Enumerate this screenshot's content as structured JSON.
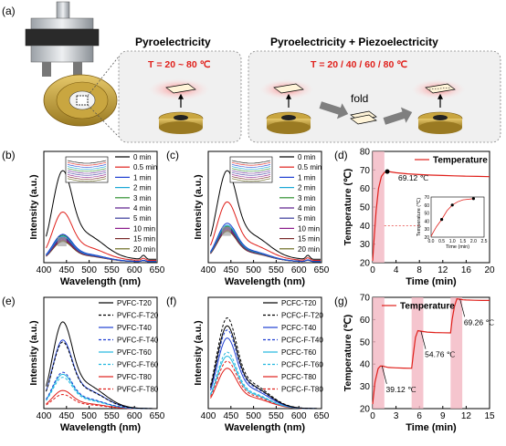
{
  "panels": {
    "a": {
      "letter": "(a)",
      "box1": {
        "title": "Pyroelectricity",
        "temp": "T = 20 ~ 80 ℃"
      },
      "box2": {
        "title": "Pyroelectricity + Piezoelectricity",
        "temp": "T = 20 / 40 / 60 / 80 ℃",
        "fold_label": "fold"
      }
    },
    "b": {
      "letter": "(b)"
    },
    "c": {
      "letter": "(c)"
    },
    "d": {
      "letter": "(d)"
    },
    "e": {
      "letter": "(e)"
    },
    "f": {
      "letter": "(f)"
    },
    "g": {
      "letter": "(g)"
    }
  },
  "chart_data": [
    {
      "id": "b",
      "type": "line",
      "xlabel": "Wavelength (nm)",
      "ylabel": "Intensity (a.u.)",
      "xlim": [
        400,
        650
      ],
      "xticks": [
        400,
        450,
        500,
        550,
        600,
        650
      ],
      "ylim": [
        0,
        1
      ],
      "y_ticks_shown": false,
      "series": [
        {
          "name": "0 min",
          "color": "#000000",
          "dash": false,
          "peak": 0.88,
          "base": 0.03
        },
        {
          "name": "0.5 min",
          "color": "#e0201b",
          "dash": false,
          "peak": 0.48,
          "base": 0.02
        },
        {
          "name": "1 min",
          "color": "#1f3fd1",
          "dash": false,
          "peak": 0.27,
          "base": 0.01
        },
        {
          "name": "2 min",
          "color": "#1aa7d6",
          "dash": false,
          "peak": 0.25,
          "base": 0.01
        },
        {
          "name": "3 min",
          "color": "#2f8f2f",
          "dash": false,
          "peak": 0.26,
          "base": 0.01
        },
        {
          "name": "4 min",
          "color": "#5a1a8a",
          "dash": false,
          "peak": 0.24,
          "base": 0.01
        },
        {
          "name": "5 min",
          "color": "#3a3a9a",
          "dash": false,
          "peak": 0.23,
          "base": 0.01
        },
        {
          "name": "10 min",
          "color": "#8a1a8a",
          "dash": false,
          "peak": 0.22,
          "base": 0.01
        },
        {
          "name": "15 min",
          "color": "#7a2a2a",
          "dash": false,
          "peak": 0.21,
          "base": 0.01
        },
        {
          "name": "20 min",
          "color": "#6a6a20",
          "dash": false,
          "peak": 0.2,
          "base": 0.01
        }
      ],
      "extra_peak_nm": 620
    },
    {
      "id": "c",
      "type": "line",
      "xlabel": "Wavelength (nm)",
      "ylabel": "Intensity (a.u.)",
      "xlim": [
        400,
        650
      ],
      "xticks": [
        400,
        450,
        500,
        550,
        600,
        650
      ],
      "ylim": [
        0,
        1
      ],
      "y_ticks_shown": false,
      "series": [
        {
          "name": "0 min",
          "color": "#000000",
          "dash": false,
          "peak": 0.88,
          "base": 0.03
        },
        {
          "name": "0.5 min",
          "color": "#e0201b",
          "dash": false,
          "peak": 0.58,
          "base": 0.02
        },
        {
          "name": "1 min",
          "color": "#1f3fd1",
          "dash": false,
          "peak": 0.38,
          "base": 0.01
        },
        {
          "name": "2 min",
          "color": "#1aa7d6",
          "dash": false,
          "peak": 0.36,
          "base": 0.01
        },
        {
          "name": "3 min",
          "color": "#2f8f2f",
          "dash": false,
          "peak": 0.35,
          "base": 0.01
        },
        {
          "name": "4 min",
          "color": "#5a1a8a",
          "dash": false,
          "peak": 0.34,
          "base": 0.01
        },
        {
          "name": "5 min",
          "color": "#3a3a9a",
          "dash": false,
          "peak": 0.33,
          "base": 0.01
        },
        {
          "name": "10 min",
          "color": "#8a1a8a",
          "dash": false,
          "peak": 0.32,
          "base": 0.01
        },
        {
          "name": "15 min",
          "color": "#7a2a2a",
          "dash": false,
          "peak": 0.31,
          "base": 0.01
        },
        {
          "name": "20 min",
          "color": "#6a6a20",
          "dash": false,
          "peak": 0.3,
          "base": 0.01
        }
      ],
      "extra_peak_nm": 620
    },
    {
      "id": "d",
      "type": "line",
      "xlabel": "Time (min)",
      "ylabel": "Temperature (℃)",
      "xlim": [
        0,
        20
      ],
      "xticks": [
        0,
        4,
        8,
        12,
        16,
        20
      ],
      "ylim": [
        20,
        80
      ],
      "yticks": [
        20,
        30,
        40,
        50,
        60,
        70,
        80
      ],
      "series": [
        {
          "name": "Temperature",
          "color": "#e0201b",
          "x": [
            0,
            0.3,
            0.6,
            1.0,
            1.5,
            2.0,
            2.5,
            3,
            4,
            6,
            8,
            10,
            12,
            14,
            16,
            18,
            20
          ],
          "y": [
            21,
            35,
            48,
            60,
            66.5,
            68.6,
            69.1,
            69.0,
            68.5,
            67.9,
            67.5,
            67.2,
            67.0,
            66.8,
            66.6,
            66.5,
            66.4
          ]
        }
      ],
      "shaded_x": [
        0,
        2
      ],
      "annotation": {
        "text": "69.12 ℃",
        "x": 2.5,
        "y": 69.12
      },
      "inset": {
        "xlabel": "Time (min)",
        "ylabel": "Temperature (℃)",
        "xlim": [
          0,
          2.5
        ],
        "xticks": [
          0.0,
          0.5,
          1.0,
          1.5,
          2.0,
          2.5
        ],
        "ylim": [
          20,
          70
        ],
        "yticks": [
          20,
          30,
          40,
          50,
          60,
          70
        ],
        "x": [
          0,
          0.1,
          0.25,
          0.5,
          0.75,
          1.0,
          1.25,
          1.5,
          2.0
        ],
        "y": [
          21,
          26,
          33,
          42,
          53,
          60,
          64,
          66.5,
          68
        ],
        "markers_x": [
          0.5,
          1.0,
          2.0
        ],
        "markers_y": [
          42,
          60,
          68
        ]
      }
    },
    {
      "id": "e",
      "type": "line",
      "xlabel": "Wavelength (nm)",
      "ylabel": "Intensity (a.u.)",
      "xlim": [
        400,
        650
      ],
      "xticks": [
        400,
        450,
        500,
        550,
        600,
        650
      ],
      "ylim": [
        0,
        1
      ],
      "y_ticks_shown": false,
      "series": [
        {
          "name": "PVFC-T20",
          "color": "#000000",
          "dash": false,
          "peak": 0.86
        },
        {
          "name": "PVFC-F-T20",
          "color": "#000000",
          "dash": true,
          "peak": 0.66
        },
        {
          "name": "PVFC-T40",
          "color": "#1f3fd1",
          "dash": false,
          "peak": 0.68
        },
        {
          "name": "PVFC-F-T40",
          "color": "#1f3fd1",
          "dash": true,
          "peak": 0.36
        },
        {
          "name": "PVFC-T60",
          "color": "#22b8e0",
          "dash": false,
          "peak": 0.34
        },
        {
          "name": "PVFC-F-T60",
          "color": "#22b8e0",
          "dash": true,
          "peak": 0.31
        },
        {
          "name": "PVFC-T80",
          "color": "#e0201b",
          "dash": false,
          "peak": 0.18
        },
        {
          "name": "PVFC-F-T80",
          "color": "#e0201b",
          "dash": true,
          "peak": 0.14
        }
      ]
    },
    {
      "id": "f",
      "type": "line",
      "xlabel": "Wavelength (nm)",
      "ylabel": "Intensity (a.u.)",
      "xlim": [
        400,
        650
      ],
      "xticks": [
        400,
        450,
        500,
        550,
        600,
        650
      ],
      "ylim": [
        0,
        1
      ],
      "y_ticks_shown": false,
      "series": [
        {
          "name": "PCFC-T20",
          "color": "#000000",
          "dash": false,
          "peak": 0.82
        },
        {
          "name": "PCFC-F-T20",
          "color": "#000000",
          "dash": true,
          "peak": 0.9
        },
        {
          "name": "PCFC-T40",
          "color": "#1f3fd1",
          "dash": false,
          "peak": 0.7
        },
        {
          "name": "PCFC-F-T40",
          "color": "#1f3fd1",
          "dash": true,
          "peak": 0.78
        },
        {
          "name": "PCFC-T60",
          "color": "#22b8e0",
          "dash": false,
          "peak": 0.52
        },
        {
          "name": "PCFC-F-T60",
          "color": "#22b8e0",
          "dash": true,
          "peak": 0.56
        },
        {
          "name": "PCFC-T80",
          "color": "#e0201b",
          "dash": false,
          "peak": 0.4
        },
        {
          "name": "PCFC-F-T80",
          "color": "#e0201b",
          "dash": true,
          "peak": 0.47
        }
      ]
    },
    {
      "id": "g",
      "type": "line",
      "xlabel": "Time (min)",
      "ylabel": "Temperature (℃)",
      "xlim": [
        0,
        15
      ],
      "xticks": [
        0,
        3,
        6,
        9,
        12,
        15
      ],
      "ylim": [
        20,
        70
      ],
      "yticks": [
        20,
        30,
        40,
        50,
        60,
        70
      ],
      "series": [
        {
          "name": "Temperature",
          "color": "#e0201b",
          "x": [
            0,
            0.3,
            0.7,
            1.0,
            1.3,
            1.6,
            2,
            3,
            4,
            5,
            5.2,
            5.5,
            5.8,
            6.2,
            6.6,
            7,
            8,
            9,
            10,
            10.2,
            10.5,
            10.8,
            11.2,
            11.6,
            12,
            13,
            14,
            15
          ],
          "y": [
            22,
            32,
            38,
            39.1,
            39.1,
            38.8,
            38.5,
            38.3,
            38.2,
            38.1,
            44,
            52,
            55,
            54.8,
            54.6,
            54.4,
            54.2,
            54.1,
            54,
            60,
            66,
            69.3,
            69.1,
            68.9,
            68.8,
            68.7,
            68.6,
            68.6
          ]
        }
      ],
      "shaded_x": [
        [
          0,
          1.5
        ],
        [
          5,
          6.5
        ],
        [
          10,
          11.5
        ]
      ],
      "annotations": [
        {
          "text": "39.12 ℃",
          "x": 1.5,
          "y": 39.12
        },
        {
          "text": "54.76 ℃",
          "x": 6.5,
          "y": 54.76
        },
        {
          "text": "69.26 ℃",
          "x": 11.5,
          "y": 69.26
        }
      ]
    }
  ]
}
